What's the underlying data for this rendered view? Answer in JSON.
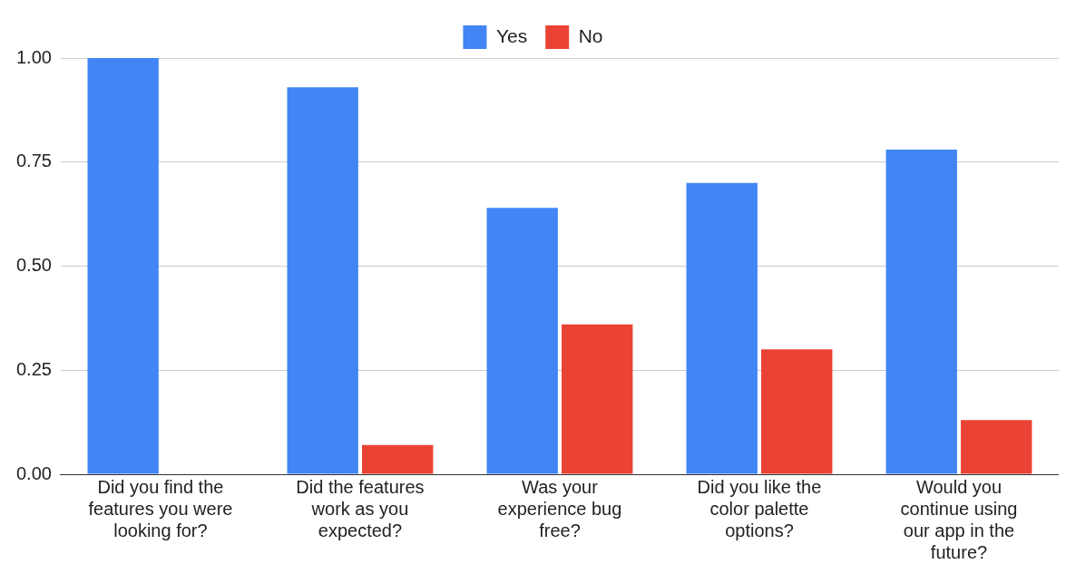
{
  "chart_data": {
    "type": "bar",
    "categories": [
      "Did you find the features you were looking for?",
      "Did the features work as you expected?",
      "Was your experience bug free?",
      "Did you like the color palette options?",
      "Would you continue using our app in the future?"
    ],
    "series": [
      {
        "name": "Yes",
        "color": "#4285f4",
        "values": [
          1,
          0.93,
          0.64,
          0.7,
          0.78
        ]
      },
      {
        "name": "No",
        "color": "#ea4335",
        "values": [
          0,
          0.07,
          0.36,
          0.3,
          0.13
        ]
      }
    ],
    "ylim": [
      0,
      1
    ],
    "yticks": [
      {
        "value": 0,
        "label": "0.00"
      },
      {
        "value": 0.25,
        "label": "0.25"
      },
      {
        "value": 0.5,
        "label": "0.50"
      },
      {
        "value": 0.75,
        "label": "0.75"
      },
      {
        "value": 1,
        "label": "1.00"
      }
    ],
    "grid": "y",
    "legend": "top"
  }
}
